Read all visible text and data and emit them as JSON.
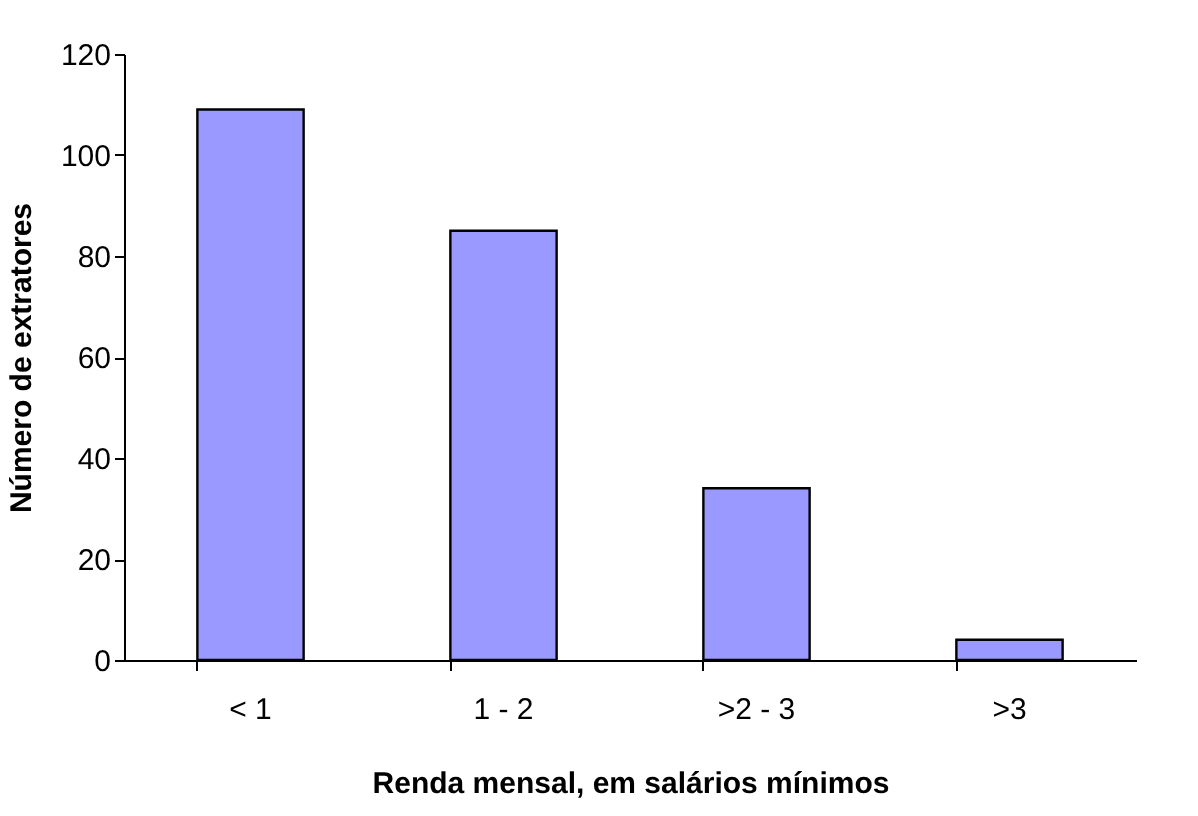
{
  "chart_data": {
    "type": "bar",
    "xlabel": "Renda mensal, em salários mínimos",
    "ylabel": "Número de extratores",
    "categories": [
      "< 1",
      "1 - 2",
      ">2 - 3",
      ">3"
    ],
    "values": [
      109,
      85,
      34,
      4
    ],
    "color": "#9999ff",
    "ylim": [
      0,
      120
    ],
    "yticks": [
      0,
      20,
      40,
      60,
      80,
      100,
      120
    ],
    "grid": false
  }
}
